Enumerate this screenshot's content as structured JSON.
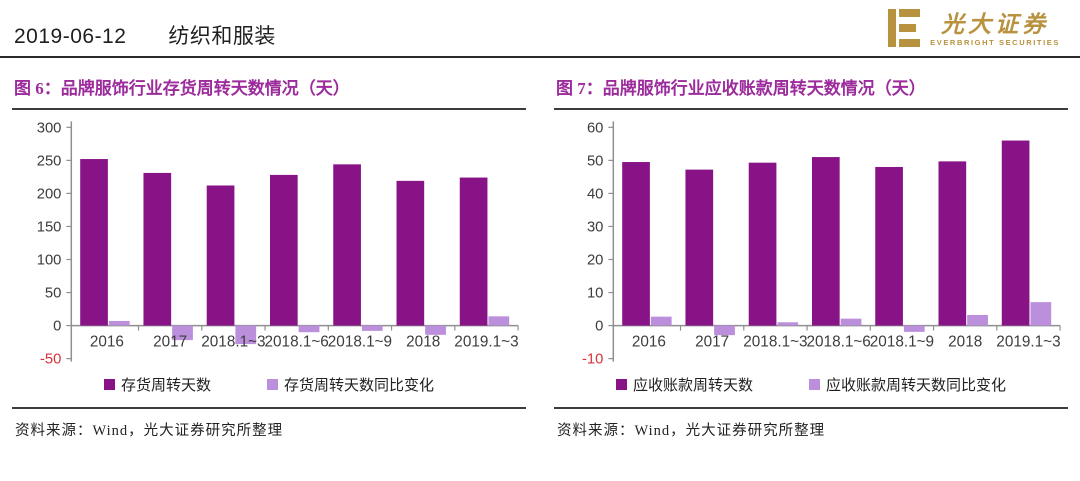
{
  "header": {
    "date": "2019-06-12",
    "section": "纺织和服装"
  },
  "logo": {
    "name_cn": "光大证券",
    "name_en": "EVERBRIGHT  SECURITIES",
    "mark": "E"
  },
  "colors": {
    "primary_bar": "#871386",
    "secondary_bar": "#bb8fdc",
    "figure_title": "#9c2b9c",
    "negative_tick_label": "#d4333b",
    "brand_gold": "#b8923f",
    "axis_gray": "#8f8f8f"
  },
  "figures": [
    {
      "source": "资料来源：Wind，光大证券研究所整理"
    },
    {
      "source": "资料来源：Wind，光大证券研究所整理"
    }
  ],
  "chart_data": [
    {
      "type": "bar",
      "title": "图 6：品牌服饰行业存货周转天数情况（天）",
      "categories": [
        "2016",
        "2017",
        "2018.1~3",
        "2018.1~6",
        "2018.1~9",
        "2018",
        "2019.1~3"
      ],
      "series": [
        {
          "name": "存货周转天数",
          "color": "#871386",
          "values": [
            252,
            231,
            212,
            228,
            244,
            219,
            224
          ]
        },
        {
          "name": "存货周转天数同比变化",
          "color": "#bb8fdc",
          "values": [
            7,
            -22,
            -28,
            -10,
            -8,
            -14,
            14
          ]
        }
      ],
      "ylim": [
        -50,
        300
      ],
      "ytick_step": 50,
      "grid": false,
      "legend_position": "bottom"
    },
    {
      "type": "bar",
      "title": "图 7：品牌服饰行业应收账款周转天数情况（天）",
      "categories": [
        "2016",
        "2017",
        "2018.1~3",
        "2018.1~6",
        "2018.1~9",
        "2018",
        "2019.1~3"
      ],
      "series": [
        {
          "name": "应收账款周转天数",
          "color": "#871386",
          "values": [
            49.5,
            47.2,
            49.3,
            51,
            48,
            49.7,
            56
          ]
        },
        {
          "name": "应收账款周转天数同比变化",
          "color": "#bb8fdc",
          "values": [
            2.7,
            -2.9,
            1,
            2.1,
            -1.9,
            3.2,
            7.1
          ]
        }
      ],
      "ylim": [
        -10,
        60
      ],
      "ytick_step": 10,
      "grid": false,
      "legend_position": "bottom"
    }
  ]
}
